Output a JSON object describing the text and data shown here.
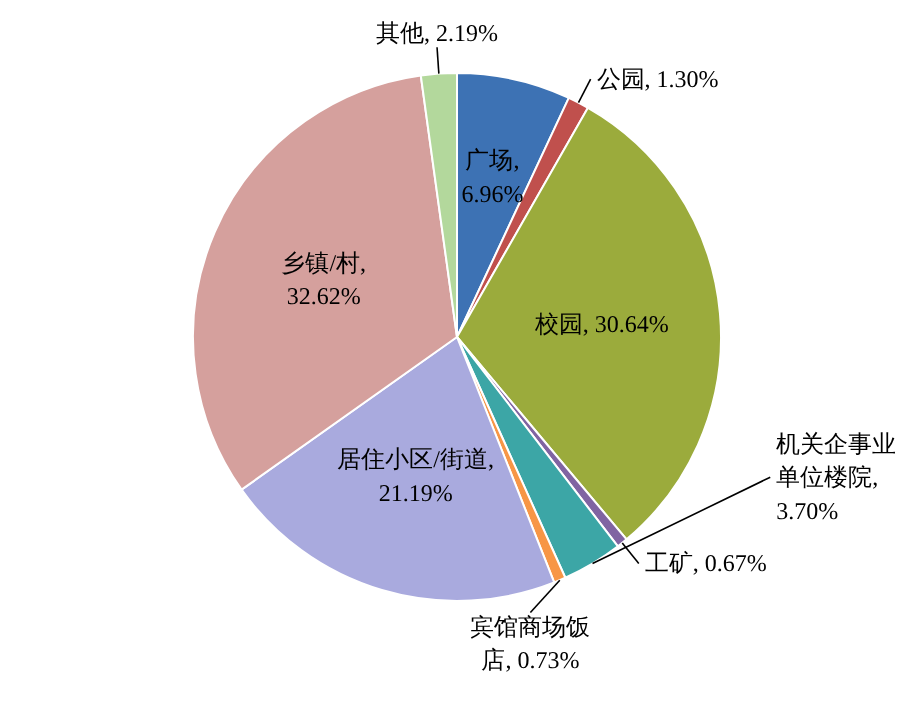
{
  "chart_data": {
    "type": "pie",
    "categories": [
      "广场",
      "公园",
      "校园",
      "工矿",
      "机关企事业单位楼院",
      "宾馆商场饭店",
      "居住小区/街道",
      "乡镇/村",
      "其他"
    ],
    "values": [
      6.96,
      1.3,
      30.64,
      0.67,
      3.7,
      0.73,
      21.19,
      32.62,
      2.19
    ],
    "colors": [
      "#3d72b4",
      "#c0504d",
      "#9bab3c",
      "#8064a2",
      "#3ca6a6",
      "#f79646",
      "#a9aade",
      "#d5a09d",
      "#b3d89c"
    ],
    "value_labels": [
      ", 6.96%",
      ", 1.30%",
      ", 30.64%",
      ", 0.67%",
      ", 3.70%",
      ", 0.73%",
      ", 21.19%",
      ", 32.62%",
      ", 2.19%"
    ]
  }
}
